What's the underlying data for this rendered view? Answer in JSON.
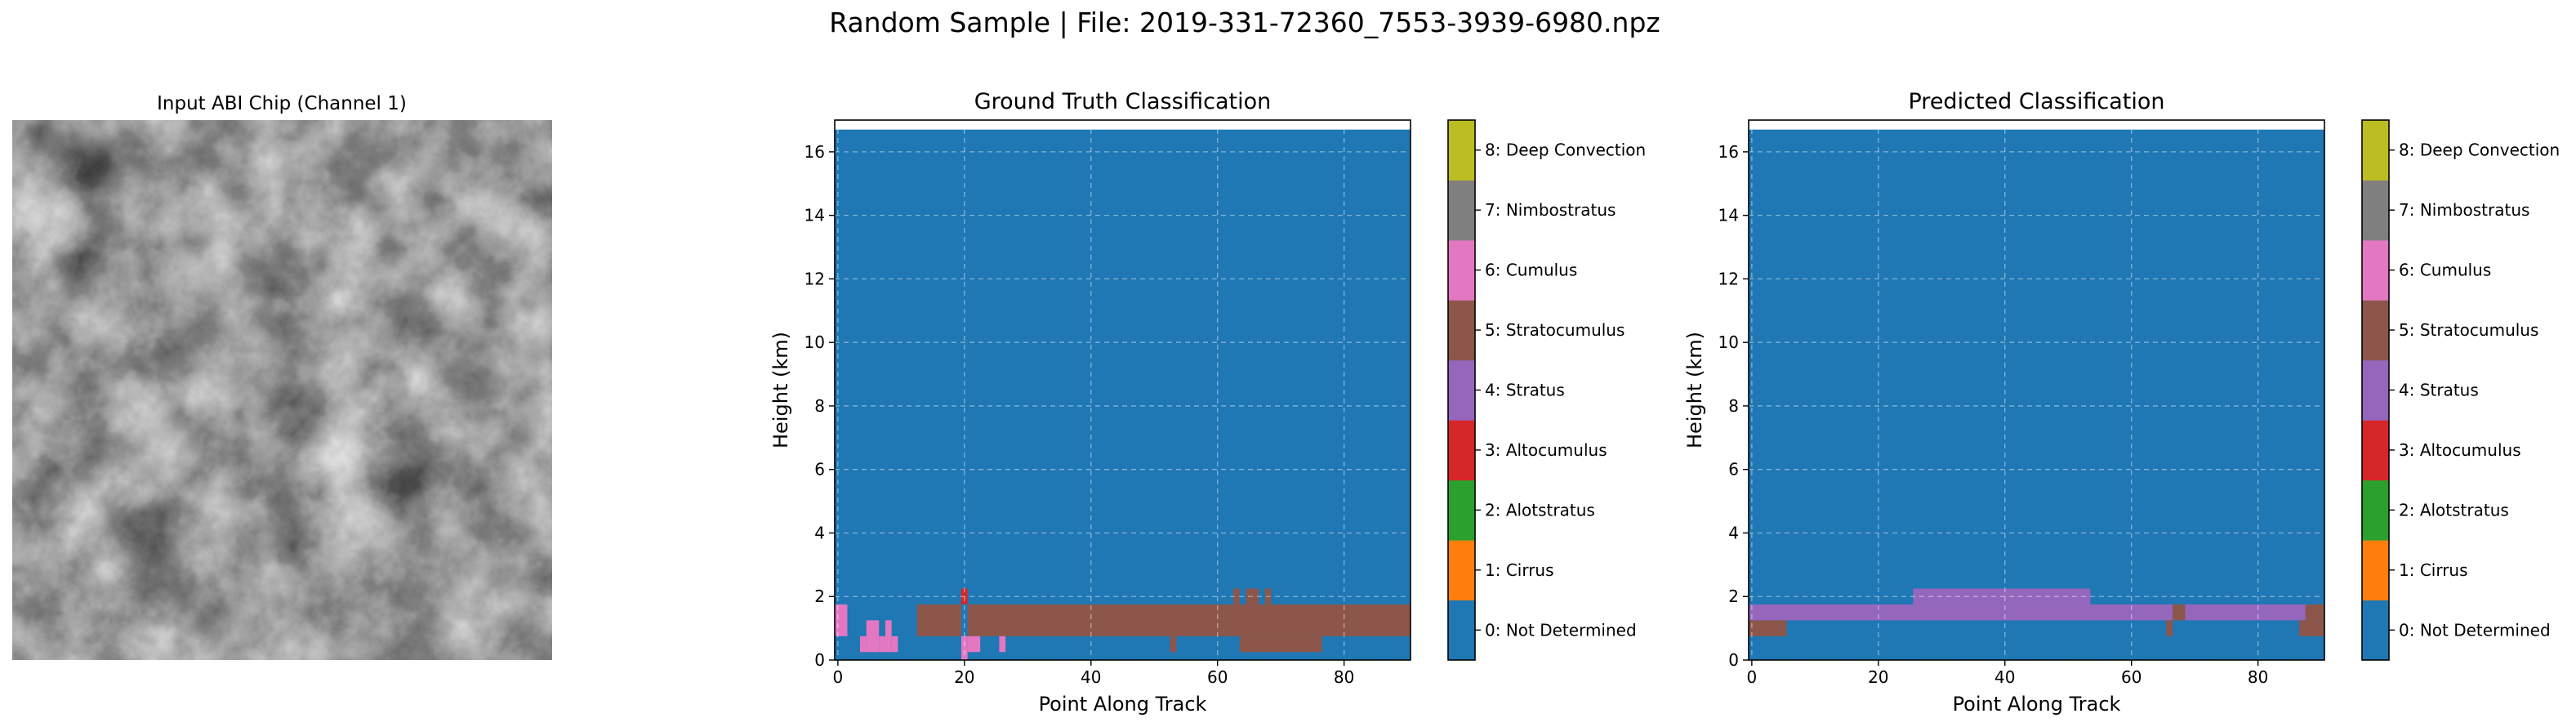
{
  "suptitle": "Random Sample | File: 2019-331-72360_7553-3939-6980.npz",
  "chip": {
    "title": "Input ABI Chip (Channel 1)"
  },
  "colors": [
    "#1f77b4",
    "#ff7f0e",
    "#2ca02c",
    "#d62728",
    "#9467bd",
    "#8c564b",
    "#e377c2",
    "#7f7f7f",
    "#bcbd22",
    "#17becf"
  ],
  "colorbar_labels": [
    "0: Not Determined",
    "1: Cirrus",
    "2: Alotstratus",
    "3: Altocumulus",
    "4: Stratus",
    "5: Stratocumulus",
    "6: Cumulus",
    "7: Nimbostratus",
    "8: Deep Convection"
  ],
  "chart_data": [
    {
      "type": "heatmap",
      "title": "Ground Truth Classification",
      "xlabel": "Point Along Track",
      "ylabel": "Height (km)",
      "xlim": [
        -0.5,
        90.5
      ],
      "ylim": [
        0,
        17
      ],
      "y_top": 16.7,
      "xticks": [
        0,
        20,
        40,
        60,
        80
      ],
      "yticks": [
        0,
        2,
        4,
        6,
        8,
        10,
        12,
        14,
        16
      ],
      "grid": true,
      "background_class": 0,
      "regions": [
        {
          "class": 5,
          "x0": 12.5,
          "x1": 90.5,
          "y0": 0.75,
          "y1": 1.75
        },
        {
          "class": 0,
          "x0": 19.5,
          "x1": 20.5,
          "y0": 0.75,
          "y1": 1.75
        },
        {
          "class": 5,
          "x0": 63.5,
          "x1": 76.5,
          "y0": 0.25,
          "y1": 0.75
        },
        {
          "class": 5,
          "x0": 52.5,
          "x1": 53.5,
          "y0": 0.25,
          "y1": 0.75
        },
        {
          "class": 5,
          "x0": 62.5,
          "x1": 63.5,
          "y0": 1.75,
          "y1": 2.25
        },
        {
          "class": 5,
          "x0": 64.5,
          "x1": 66.5,
          "y0": 1.75,
          "y1": 2.25
        },
        {
          "class": 5,
          "x0": 67.5,
          "x1": 68.5,
          "y0": 1.75,
          "y1": 2.25
        },
        {
          "class": 3,
          "x0": 19.5,
          "x1": 20.5,
          "y0": 1.75,
          "y1": 2.25
        },
        {
          "class": 6,
          "x0": -0.5,
          "x1": 1.5,
          "y0": 0.75,
          "y1": 1.75
        },
        {
          "class": 6,
          "x0": 3.5,
          "x1": 4.5,
          "y0": 0.25,
          "y1": 0.75
        },
        {
          "class": 6,
          "x0": 4.5,
          "x1": 6.5,
          "y0": 0.25,
          "y1": 1.25
        },
        {
          "class": 6,
          "x0": 6.5,
          "x1": 7.5,
          "y0": 0.25,
          "y1": 0.75
        },
        {
          "class": 6,
          "x0": 7.5,
          "x1": 8.5,
          "y0": 0.25,
          "y1": 1.25
        },
        {
          "class": 6,
          "x0": 8.5,
          "x1": 9.5,
          "y0": 0.25,
          "y1": 0.75
        },
        {
          "class": 6,
          "x0": 19.5,
          "x1": 20.5,
          "y0": 0.0,
          "y1": 0.75
        },
        {
          "class": 6,
          "x0": 20.5,
          "x1": 22.5,
          "y0": 0.25,
          "y1": 0.75
        },
        {
          "class": 6,
          "x0": 25.5,
          "x1": 26.5,
          "y0": 0.25,
          "y1": 0.75
        }
      ]
    },
    {
      "type": "heatmap",
      "title": "Predicted Classification",
      "xlabel": "Point Along Track",
      "ylabel": "Height (km)",
      "xlim": [
        -0.5,
        90.5
      ],
      "ylim": [
        0,
        17
      ],
      "y_top": 16.7,
      "xticks": [
        0,
        20,
        40,
        60,
        80
      ],
      "yticks": [
        0,
        2,
        4,
        6,
        8,
        10,
        12,
        14,
        16
      ],
      "grid": true,
      "background_class": 0,
      "regions": [
        {
          "class": 4,
          "x0": -0.5,
          "x1": 87.5,
          "y0": 1.25,
          "y1": 1.75
        },
        {
          "class": 4,
          "x0": 25.5,
          "x1": 53.5,
          "y0": 1.75,
          "y1": 2.25
        },
        {
          "class": 5,
          "x0": 66.5,
          "x1": 68.5,
          "y0": 1.25,
          "y1": 1.75
        },
        {
          "class": 5,
          "x0": -0.5,
          "x1": 5.5,
          "y0": 0.75,
          "y1": 1.25
        },
        {
          "class": 5,
          "x0": 65.5,
          "x1": 66.5,
          "y0": 0.75,
          "y1": 1.25
        },
        {
          "class": 5,
          "x0": 86.5,
          "x1": 90.5,
          "y0": 0.75,
          "y1": 1.25
        },
        {
          "class": 5,
          "x0": 87.5,
          "x1": 90.5,
          "y0": 1.25,
          "y1": 1.75
        }
      ]
    }
  ]
}
